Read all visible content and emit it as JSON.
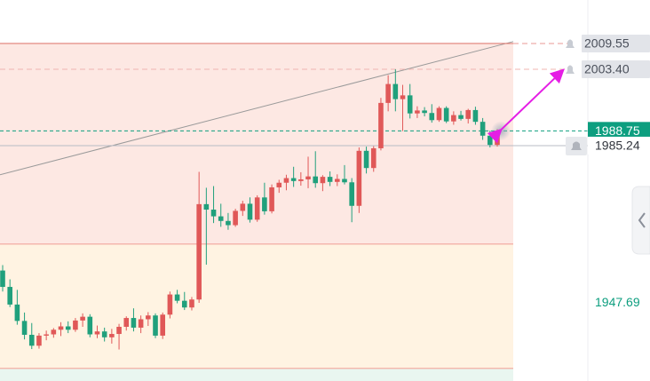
{
  "chart_data": {
    "type": "candlestick",
    "ylim": [
      1929.2,
      2019.9
    ],
    "up_color": "#e05858",
    "down_color": "#20a07c",
    "zone_lines": [
      1961.8,
      1932.2
    ],
    "trendline": [
      1978.3,
      2010.0
    ],
    "price_lines": [
      {
        "value": 2009.55,
        "label": "2009.55",
        "style": "alert",
        "color": "#e89a94"
      },
      {
        "value": 2003.4,
        "label": "2003.40",
        "style": "alert",
        "color": "#f0b5b0"
      },
      {
        "value": 1988.75,
        "label": "1988.75",
        "style": "last",
        "color": "#0d9e7f"
      },
      {
        "value": 1985.24,
        "label": "1985.24",
        "style": "box",
        "color": "#b8bcc6"
      },
      {
        "value": 1947.69,
        "label": "1947.69",
        "style": "text",
        "color": "#0d9e7f"
      }
    ],
    "candles": [
      [
        1955.5,
        1956.8,
        1950.5,
        1951.6
      ],
      [
        1951.6,
        1953.4,
        1946.8,
        1947.4
      ],
      [
        1947.4,
        1950.9,
        1942.6,
        1943.5
      ],
      [
        1943.5,
        1945.5,
        1939.1,
        1940.2
      ],
      [
        1940.2,
        1943.0,
        1936.8,
        1937.6
      ],
      [
        1937.6,
        1940.6,
        1936.9,
        1940.0
      ],
      [
        1940.0,
        1941.2,
        1938.9,
        1940.3
      ],
      [
        1940.3,
        1941.8,
        1939.5,
        1941.4
      ],
      [
        1941.4,
        1943.2,
        1939.9,
        1942.2
      ],
      [
        1942.2,
        1943.4,
        1940.6,
        1941.4
      ],
      [
        1941.4,
        1944.2,
        1940.9,
        1943.6
      ],
      [
        1943.6,
        1945.3,
        1942.1,
        1944.5
      ],
      [
        1944.5,
        1945.1,
        1939.6,
        1940.3
      ],
      [
        1940.3,
        1942.4,
        1939.4,
        1941.0
      ],
      [
        1941.0,
        1941.9,
        1938.6,
        1939.6
      ],
      [
        1939.6,
        1941.6,
        1938.1,
        1940.4
      ],
      [
        1940.4,
        1942.8,
        1936.7,
        1942.1
      ],
      [
        1942.1,
        1944.6,
        1941.2,
        1944.2
      ],
      [
        1944.2,
        1946.5,
        1941.0,
        1941.9
      ],
      [
        1941.9,
        1944.8,
        1940.6,
        1943.9
      ],
      [
        1943.9,
        1945.6,
        1942.3,
        1944.8
      ],
      [
        1944.8,
        1945.3,
        1939.4,
        1940.0
      ],
      [
        1940.0,
        1945.5,
        1939.2,
        1945.0
      ],
      [
        1945.0,
        1950.5,
        1944.1,
        1949.8
      ],
      [
        1949.8,
        1950.9,
        1947.7,
        1948.3
      ],
      [
        1948.3,
        1950.4,
        1946.1,
        1946.7
      ],
      [
        1946.7,
        1949.2,
        1946.0,
        1948.6
      ],
      [
        1948.6,
        1979.0,
        1947.8,
        1971.3
      ],
      [
        1971.3,
        1975.2,
        1956.9,
        1970.0
      ],
      [
        1970.0,
        1975.6,
        1966.8,
        1968.4
      ],
      [
        1968.4,
        1971.4,
        1965.9,
        1967.3
      ],
      [
        1967.3,
        1969.2,
        1965.2,
        1966.3
      ],
      [
        1966.3,
        1970.2,
        1965.9,
        1969.7
      ],
      [
        1969.7,
        1972.1,
        1968.5,
        1971.4
      ],
      [
        1971.4,
        1972.9,
        1966.9,
        1967.6
      ],
      [
        1967.6,
        1973.4,
        1967.1,
        1972.9
      ],
      [
        1972.9,
        1976.4,
        1968.8,
        1969.6
      ],
      [
        1969.6,
        1976.0,
        1969.1,
        1975.3
      ],
      [
        1975.3,
        1977.1,
        1974.0,
        1976.4
      ],
      [
        1976.4,
        1978.3,
        1974.6,
        1977.5
      ],
      [
        1977.5,
        1980.2,
        1975.4,
        1976.8
      ],
      [
        1976.8,
        1978.9,
        1975.7,
        1977.2
      ],
      [
        1977.2,
        1982.6,
        1975.1,
        1977.9
      ],
      [
        1977.9,
        1983.9,
        1975.2,
        1976.3
      ],
      [
        1976.3,
        1978.2,
        1974.4,
        1977.8
      ],
      [
        1977.8,
        1979.1,
        1975.6,
        1976.6
      ],
      [
        1976.6,
        1978.4,
        1975.6,
        1977.3
      ],
      [
        1977.3,
        1980.6,
        1976.0,
        1976.5
      ],
      [
        1976.5,
        1977.5,
        1967.0,
        1970.9
      ],
      [
        1970.9,
        1984.8,
        1969.2,
        1984.0
      ],
      [
        1984.0,
        1985.0,
        1978.6,
        1979.9
      ],
      [
        1979.9,
        1985.1,
        1979.0,
        1984.6
      ],
      [
        1984.6,
        1996.6,
        1984.1,
        1995.4
      ],
      [
        1995.4,
        2002.0,
        1993.4,
        1999.9
      ],
      [
        1999.9,
        2003.4,
        1993.4,
        1996.3
      ],
      [
        1996.3,
        1999.7,
        1988.7,
        1997.2
      ],
      [
        1997.2,
        1999.9,
        1991.7,
        1992.9
      ],
      [
        1992.9,
        1994.6,
        1991.8,
        1993.6
      ],
      [
        1993.6,
        1994.4,
        1992.2,
        1993.0
      ],
      [
        1993.0,
        1995.1,
        1990.7,
        1991.3
      ],
      [
        1991.3,
        1994.6,
        1990.9,
        1994.2
      ],
      [
        1994.2,
        1994.6,
        1990.6,
        1991.0
      ],
      [
        1991.0,
        1993.4,
        1990.2,
        1992.5
      ],
      [
        1992.5,
        1993.5,
        1991.2,
        1991.6
      ],
      [
        1991.6,
        1994.0,
        1990.5,
        1993.7
      ],
      [
        1993.7,
        1994.5,
        1990.2,
        1990.9
      ],
      [
        1990.9,
        1991.8,
        1986.6,
        1987.6
      ],
      [
        1987.6,
        1988.8,
        1984.8,
        1985.4
      ],
      [
        1985.4,
        1989.2,
        1985.0,
        1988.75
      ]
    ]
  }
}
